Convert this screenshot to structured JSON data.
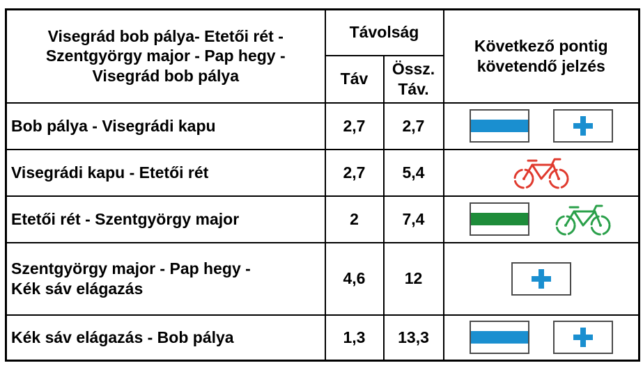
{
  "header": {
    "route_title": "Visegrád bob pálya- Etetői rét - Szentgyörgy major - Pap hegy - Visegrád bob pálya",
    "distance_group": "Távolság",
    "distance_segment": "Táv",
    "distance_total_line1": "Össz.",
    "distance_total_line2": "Táv.",
    "next_marking_line1": "Következő pontig",
    "next_marking_line2": "követendő jelzés"
  },
  "rows": [
    {
      "route": "Bob pálya - Visegrádi kapu",
      "segment": "2,7",
      "total": "2,7",
      "marks": [
        "blue-stripe-sign",
        "blue-cross-sign"
      ]
    },
    {
      "route": "Visegrádi kapu - Etetői rét",
      "segment": "2,7",
      "total": "5,4",
      "marks": [
        "red-bicycle-sign"
      ]
    },
    {
      "route": "Etetői rét - Szentgyörgy major",
      "segment": "2",
      "total": "7,4",
      "marks": [
        "green-stripe-sign",
        "green-bicycle-sign"
      ]
    },
    {
      "route_line1": "Szentgyörgy major - Pap hegy -",
      "route_line2": "Kék sáv elágazás",
      "segment": "4,6",
      "total": "12",
      "marks": [
        "blue-cross-sign"
      ]
    },
    {
      "route": "Kék sáv elágazás - Bob pálya",
      "segment": "1,3",
      "total": "13,3",
      "marks": [
        "blue-stripe-sign",
        "blue-cross-sign"
      ]
    }
  ],
  "colors": {
    "blue": "#1a8fd0",
    "green": "#1e8c3a",
    "red": "#e03a2e",
    "green_bike": "#2aa04a",
    "border": "#000000",
    "sign_frame": "#4a4a4a"
  }
}
